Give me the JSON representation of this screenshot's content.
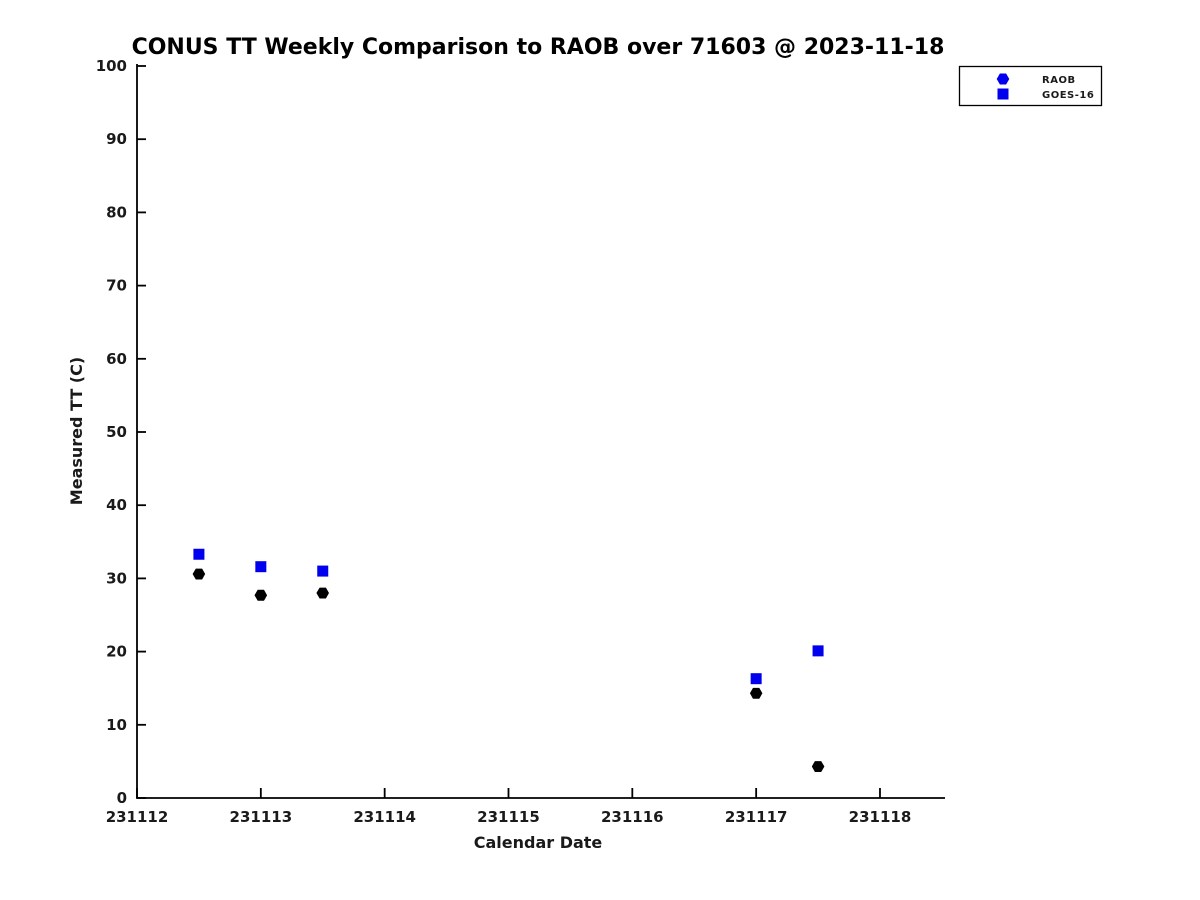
{
  "chart_data": {
    "type": "scatter",
    "title": "CONUS TT Weekly Comparison to RAOB over 71603 @ 2023-11-18",
    "xlabel": "Calendar Date",
    "ylabel": "Measured TT (C)",
    "x_tick_labels": [
      "231112",
      "231113",
      "231114",
      "231115",
      "231116",
      "231117",
      "231118"
    ],
    "x_tick_values": [
      231112,
      231113,
      231114,
      231115,
      231116,
      231117,
      231118
    ],
    "y_ticks": [
      0,
      10,
      20,
      30,
      40,
      50,
      60,
      70,
      80,
      90,
      100
    ],
    "xlim": [
      231112,
      231118.53
    ],
    "ylim": [
      0,
      100
    ],
    "grid": false,
    "legend": {
      "position": "top-right",
      "marker_color": "#0000ee",
      "entries": [
        {
          "label": "RAOB",
          "marker": "hexagon"
        },
        {
          "label": "GOES-16",
          "marker": "square"
        }
      ]
    },
    "colors": {
      "axis": "#000000",
      "raob": "#000000",
      "goes16": "#0000ee"
    },
    "series": [
      {
        "name": "RAOB",
        "marker": "hexagon",
        "color": "#000000",
        "x": [
          231112.5,
          231113.0,
          231113.5,
          231117.0,
          231117.5
        ],
        "y": [
          30.6,
          27.7,
          28.0,
          14.3,
          4.3
        ]
      },
      {
        "name": "GOES-16",
        "marker": "square",
        "color": "#0000ee",
        "x": [
          231112.5,
          231113.0,
          231113.5,
          231117.0,
          231117.5
        ],
        "y": [
          33.3,
          31.6,
          31.0,
          16.3,
          20.1
        ]
      }
    ]
  }
}
